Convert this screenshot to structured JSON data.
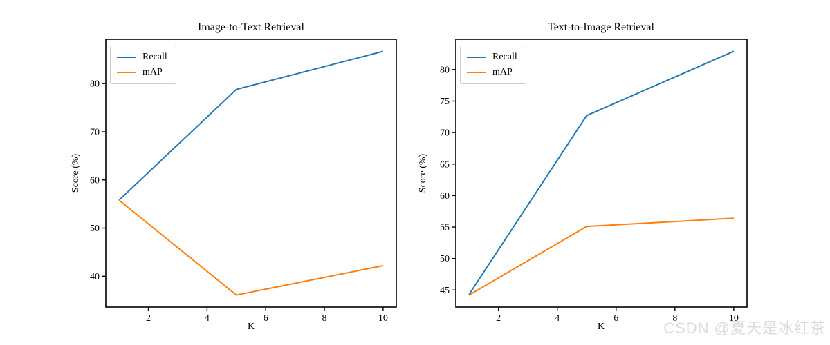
{
  "figure": {
    "background": "#ffffff",
    "text_color": "#000000",
    "spine_color": "#000000"
  },
  "watermark": {
    "text": "CSDN @夏天是冰红茶",
    "color": "#dbdbdb"
  },
  "chart_data": [
    {
      "type": "line",
      "title": "Image-to-Text Retrieval",
      "xlabel": "K",
      "ylabel": "Score (%)",
      "x": [
        1,
        5,
        10
      ],
      "series": [
        {
          "name": "Recall",
          "color": "#1f77b4",
          "values": [
            55.8,
            78.8,
            86.7
          ]
        },
        {
          "name": "mAP",
          "color": "#ff7f0e",
          "values": [
            55.8,
            36.1,
            42.2
          ]
        }
      ],
      "xticks": [
        2,
        4,
        6,
        8,
        10
      ],
      "yticks": [
        40,
        50,
        60,
        70,
        80
      ],
      "xlim": [
        0.55,
        10.45
      ],
      "ylim": [
        33.6,
        89.2
      ],
      "grid": false,
      "legend_position": "upper-left"
    },
    {
      "type": "line",
      "title": "Text-to-Image Retrieval",
      "xlabel": "K",
      "ylabel": "Score (%)",
      "x": [
        1,
        5,
        10
      ],
      "series": [
        {
          "name": "Recall",
          "color": "#1f77b4",
          "values": [
            44.3,
            72.7,
            82.9
          ]
        },
        {
          "name": "mAP",
          "color": "#ff7f0e",
          "values": [
            44.2,
            55.1,
            56.4
          ]
        }
      ],
      "xticks": [
        2,
        4,
        6,
        8,
        10
      ],
      "yticks": [
        45,
        50,
        55,
        60,
        65,
        70,
        75,
        80
      ],
      "xlim": [
        0.55,
        10.45
      ],
      "ylim": [
        42.3,
        84.8
      ],
      "grid": false,
      "legend_position": "upper-left"
    }
  ]
}
